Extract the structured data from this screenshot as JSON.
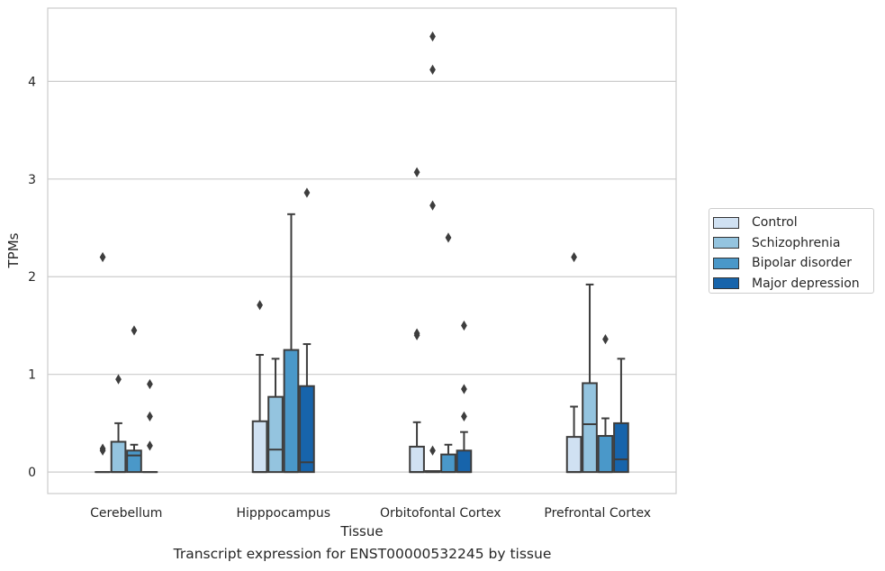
{
  "chart_data": {
    "type": "box",
    "caption": "Transcript expression for ENST00000532245 by tissue",
    "xlabel": "Tissue",
    "ylabel": "TPMs",
    "categories": [
      "Cerebellum",
      "Hipppocampus",
      "Orbitofontal Cortex",
      "Prefrontal Cortex"
    ],
    "yticks": [
      0,
      1,
      2,
      3,
      4
    ],
    "ylim": [
      -0.22,
      4.75
    ],
    "grid": "horizontal",
    "legend_position": "right",
    "series": [
      {
        "name": "Control",
        "color": "#d0e1f2",
        "boxes": [
          {
            "whislo": 0,
            "q1": 0,
            "med": 0,
            "q3": 0,
            "whishi": 0,
            "fliers": [
              0.22,
              0.24,
              2.2
            ]
          },
          {
            "whislo": 0,
            "q1": 0,
            "med": 0,
            "q3": 0.52,
            "whishi": 1.2,
            "fliers": [
              1.71
            ]
          },
          {
            "whislo": 0,
            "q1": 0,
            "med": 0,
            "q3": 0.26,
            "whishi": 0.51,
            "fliers": [
              1.4,
              1.42,
              3.07
            ]
          },
          {
            "whislo": 0,
            "q1": 0,
            "med": 0,
            "q3": 0.36,
            "whishi": 0.67,
            "fliers": [
              2.2
            ]
          }
        ]
      },
      {
        "name": "Schizophrenia",
        "color": "#94c4df",
        "boxes": [
          {
            "whislo": 0,
            "q1": 0,
            "med": 0,
            "q3": 0.31,
            "whishi": 0.5,
            "fliers": [
              0.95
            ]
          },
          {
            "whislo": 0,
            "q1": 0,
            "med": 0.23,
            "q3": 0.77,
            "whishi": 1.16,
            "fliers": []
          },
          {
            "whislo": 0,
            "q1": 0,
            "med": 0,
            "q3": 0.01,
            "whishi": 0.01,
            "fliers": [
              0.22,
              2.73,
              4.12,
              4.46
            ]
          },
          {
            "whislo": 0,
            "q1": 0,
            "med": 0.49,
            "q3": 0.91,
            "whishi": 1.92,
            "fliers": []
          }
        ]
      },
      {
        "name": "Bipolar disorder",
        "color": "#4a98c9",
        "boxes": [
          {
            "whislo": 0,
            "q1": 0,
            "med": 0.17,
            "q3": 0.22,
            "whishi": 0.28,
            "fliers": [
              1.45
            ]
          },
          {
            "whislo": 0,
            "q1": 0,
            "med": 0,
            "q3": 1.25,
            "whishi": 2.64,
            "fliers": []
          },
          {
            "whislo": 0,
            "q1": 0,
            "med": 0,
            "q3": 0.18,
            "whishi": 0.28,
            "fliers": [
              2.4
            ]
          },
          {
            "whislo": 0,
            "q1": 0,
            "med": 0,
            "q3": 0.37,
            "whishi": 0.55,
            "fliers": [
              1.36
            ]
          }
        ]
      },
      {
        "name": "Major depression",
        "color": "#1764ab",
        "boxes": [
          {
            "whislo": 0,
            "q1": 0,
            "med": 0,
            "q3": 0,
            "whishi": 0,
            "fliers": [
              0.27,
              0.57,
              0.9
            ]
          },
          {
            "whislo": 0,
            "q1": 0,
            "med": 0.1,
            "q3": 0.88,
            "whishi": 1.31,
            "fliers": [
              2.86
            ]
          },
          {
            "whislo": 0,
            "q1": 0,
            "med": 0,
            "q3": 0.22,
            "whishi": 0.41,
            "fliers": [
              0.57,
              0.85,
              1.5
            ]
          },
          {
            "whislo": 0,
            "q1": 0,
            "med": 0.13,
            "q3": 0.5,
            "whishi": 1.16,
            "fliers": []
          }
        ]
      }
    ]
  }
}
